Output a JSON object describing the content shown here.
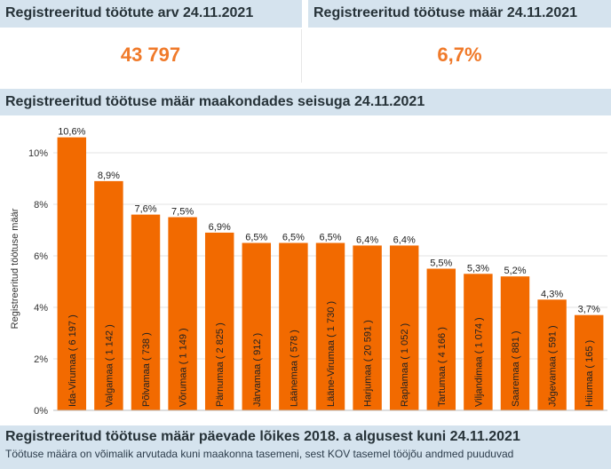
{
  "kpi_left": {
    "title": "Registreeritud töötute arv 24.11.2021",
    "value": "43 797"
  },
  "kpi_right": {
    "title": "Registreeritud töötuse määr 24.11.2021",
    "value": "6,7%"
  },
  "chart_section": {
    "title": "Registreeritud töötuse määr maakondades seisuga 24.11.2021"
  },
  "bottom_section": {
    "title": "Registreeritud töötuse määr päevade lõikes 2018. a algusest kuni 24.11.2021",
    "note": "Töötuse määra on võimalik arvutada kuni maakonna tasemeni, sest KOV tasemel tööjõu andmed puuduvad"
  },
  "colors": {
    "bar": "#f26a00",
    "header_bg": "#d5e3ee",
    "kpi_value": "#f07a2a"
  },
  "chart_data": {
    "type": "bar",
    "ylabel": "Registreeritud töötuse määr",
    "ylim": [
      0,
      11
    ],
    "yticks": [
      0,
      2,
      4,
      6,
      8,
      10
    ],
    "ytick_labels": [
      "0%",
      "2%",
      "4%",
      "6%",
      "8%",
      "10%"
    ],
    "grid": true,
    "categories": [
      "Ida-Virumaa ( 6 197 )",
      "Valgamaa ( 1 142 )",
      "Põlvamaa ( 738 )",
      "Võrumaa ( 1 149 )",
      "Pärnumaa ( 2 825 )",
      "Järvamaa ( 912 )",
      "Läänemaa ( 578 )",
      "Lääne-Virumaa ( 1 730 )",
      "Harjumaa ( 20 591 )",
      "Raplamaa ( 1 052 )",
      "Tartumaa ( 4 166 )",
      "Viljandimaa ( 1 074 )",
      "Saaremaa ( 881 )",
      "Jõgevamaa ( 591 )",
      "Hiiumaa ( 165 )"
    ],
    "values": [
      10.6,
      8.9,
      7.6,
      7.5,
      6.9,
      6.5,
      6.5,
      6.5,
      6.4,
      6.4,
      5.5,
      5.3,
      5.2,
      4.3,
      3.7
    ],
    "value_labels": [
      "10,6%",
      "8,9%",
      "7,6%",
      "7,5%",
      "6,9%",
      "6,5%",
      "6,5%",
      "6,5%",
      "6,4%",
      "6,4%",
      "5,5%",
      "5,3%",
      "5,2%",
      "4,3%",
      "3,7%"
    ]
  }
}
